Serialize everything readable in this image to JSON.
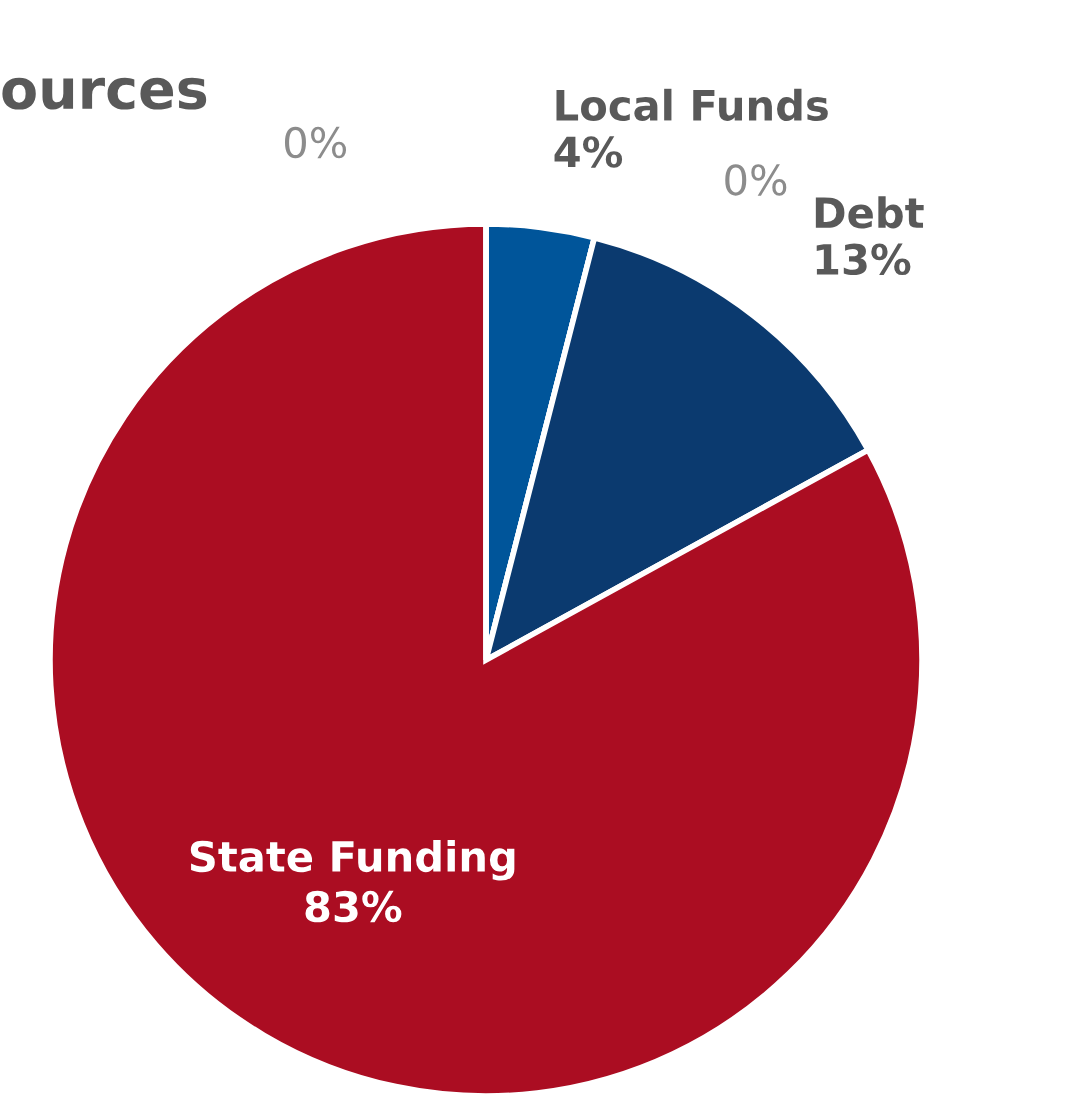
{
  "chart_data": {
    "type": "pie",
    "title": "ources",
    "categories": [
      "Local Funds",
      null,
      "Debt",
      "State Funding",
      null
    ],
    "values": [
      4,
      0,
      13,
      83,
      0
    ],
    "value_labels": [
      "4%",
      "0%",
      "13%",
      "83%",
      "0%"
    ],
    "colors": [
      "#00559a",
      "#e6e6e6",
      "#0b3a6f",
      "#ab0d22",
      "#e6e6e6"
    ],
    "legend": false
  }
}
